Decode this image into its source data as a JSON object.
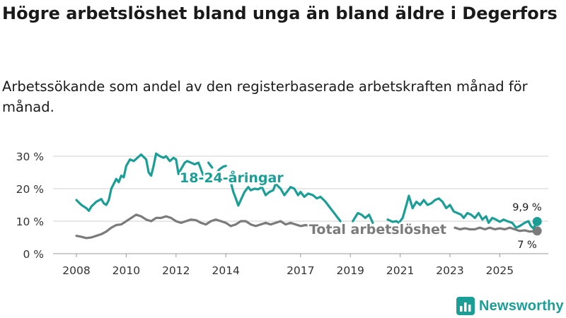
{
  "header": {
    "title": "Högre arbetslöshet bland unga än bland äldre i Degerfors",
    "subtitle": "Arbetssökande som andel av den registerbaserade arbetskraften månad för månad."
  },
  "brand": {
    "name": "Newsworthy"
  },
  "colors": {
    "youth": "#1a9e96",
    "total": "#7b7b7b",
    "grid": "#d0d0d0",
    "text": "#333333"
  },
  "chart_data": {
    "type": "line",
    "title": "Högre arbetslöshet bland unga än bland äldre i Degerfors",
    "subtitle": "Arbetssökande som andel av den registerbaserade arbetskraften månad för månad.",
    "xlabel": "",
    "ylabel": "",
    "x_range": [
      2007.6,
      2026.5
    ],
    "ylim": [
      0,
      32
    ],
    "y_ticks": [
      0,
      10,
      20,
      30
    ],
    "y_tick_labels": [
      "0 %",
      "10 %",
      "20 %",
      "30 %"
    ],
    "x_ticks": [
      2008,
      2010,
      2012,
      2014,
      2017,
      2019,
      2021,
      2023,
      2025
    ],
    "x_tick_labels": [
      "2008",
      "2010",
      "2012",
      "2014",
      "2017",
      "2019",
      "2021",
      "2023",
      "2025"
    ],
    "grid": "horizontal",
    "series": [
      {
        "name": "18-24-åringar",
        "label": "18-24-åringar",
        "end_label": "9,9 %",
        "end_value": 9.9,
        "color": "#1a9e96",
        "segments": [
          [
            [
              2008.0,
              16.5
            ],
            [
              2008.2,
              15
            ],
            [
              2008.4,
              14
            ],
            [
              2008.5,
              13.2
            ],
            [
              2008.6,
              14.5
            ],
            [
              2008.8,
              16
            ],
            [
              2009.0,
              16.8
            ],
            [
              2009.1,
              15.5
            ],
            [
              2009.2,
              15
            ],
            [
              2009.3,
              16.5
            ],
            [
              2009.4,
              20
            ],
            [
              2009.5,
              21.5
            ],
            [
              2009.6,
              23
            ],
            [
              2009.7,
              22
            ],
            [
              2009.8,
              24
            ],
            [
              2009.9,
              23.5
            ],
            [
              2010.0,
              27
            ],
            [
              2010.15,
              29
            ],
            [
              2010.3,
              28.5
            ],
            [
              2010.45,
              29.5
            ],
            [
              2010.6,
              30.5
            ],
            [
              2010.8,
              29
            ],
            [
              2010.9,
              25
            ],
            [
              2011.0,
              24
            ],
            [
              2011.1,
              27
            ],
            [
              2011.2,
              30.8
            ],
            [
              2011.35,
              30
            ],
            [
              2011.5,
              29.5
            ],
            [
              2011.6,
              30
            ],
            [
              2011.75,
              28.5
            ],
            [
              2011.9,
              29.5
            ],
            [
              2012.0,
              29
            ],
            [
              2012.1,
              24.5
            ],
            [
              2012.2,
              26
            ],
            [
              2012.35,
              28
            ],
            [
              2012.45,
              28.5
            ],
            [
              2012.6,
              28
            ],
            [
              2012.75,
              27.5
            ],
            [
              2012.9,
              28
            ],
            [
              2013.0,
              26
            ],
            [
              2013.1,
              24
            ]
          ],
          [
            [
              2013.3,
              28
            ],
            [
              2013.45,
              26.5
            ]
          ],
          [
            [
              2013.65,
              25
            ],
            [
              2013.75,
              26
            ],
            [
              2013.9,
              26.8
            ],
            [
              2014.0,
              27
            ]
          ],
          [
            [
              2014.2,
              22
            ],
            [
              2014.3,
              19
            ],
            [
              2014.4,
              17
            ],
            [
              2014.5,
              14.8
            ],
            [
              2014.6,
              16.5
            ],
            [
              2014.75,
              19
            ],
            [
              2014.9,
              20.5
            ],
            [
              2015.0,
              19.5
            ],
            [
              2015.15,
              20
            ],
            [
              2015.3,
              19.8
            ],
            [
              2015.45,
              20.5
            ],
            [
              2015.6,
              18
            ],
            [
              2015.75,
              19
            ],
            [
              2015.9,
              19.5
            ],
            [
              2016.0,
              21.5
            ],
            [
              2016.2,
              20
            ],
            [
              2016.35,
              18
            ],
            [
              2016.5,
              19.5
            ],
            [
              2016.6,
              20.5
            ],
            [
              2016.75,
              20
            ],
            [
              2016.9,
              18
            ],
            [
              2017.0,
              19
            ],
            [
              2017.15,
              17.5
            ],
            [
              2017.3,
              18.5
            ],
            [
              2017.5,
              18
            ],
            [
              2017.65,
              17
            ],
            [
              2017.8,
              17.5
            ],
            [
              2018.0,
              16
            ],
            [
              2018.2,
              14
            ],
            [
              2018.4,
              12
            ],
            [
              2018.6,
              10
            ]
          ],
          [
            [
              2019.1,
              10
            ],
            [
              2019.3,
              12.5
            ],
            [
              2019.45,
              12
            ],
            [
              2019.6,
              11
            ],
            [
              2019.75,
              12
            ],
            [
              2019.9,
              9.5
            ]
          ],
          [
            [
              2020.5,
              10.5
            ],
            [
              2020.7,
              9.8
            ],
            [
              2020.85,
              10
            ],
            [
              2020.95,
              9.5
            ],
            [
              2021.1,
              11
            ],
            [
              2021.25,
              15
            ],
            [
              2021.35,
              17.8
            ],
            [
              2021.5,
              14
            ],
            [
              2021.65,
              16
            ],
            [
              2021.8,
              15
            ],
            [
              2021.95,
              16.5
            ],
            [
              2022.1,
              15
            ],
            [
              2022.25,
              15.5
            ],
            [
              2022.4,
              16.5
            ],
            [
              2022.55,
              17
            ],
            [
              2022.7,
              16
            ],
            [
              2022.85,
              14
            ],
            [
              2023.0,
              15
            ],
            [
              2023.15,
              13
            ],
            [
              2023.3,
              12.5
            ],
            [
              2023.45,
              12
            ],
            [
              2023.55,
              11
            ],
            [
              2023.7,
              12.5
            ],
            [
              2023.85,
              12
            ],
            [
              2024.0,
              11
            ],
            [
              2024.15,
              12.5
            ],
            [
              2024.3,
              10.5
            ],
            [
              2024.45,
              11.5
            ],
            [
              2024.55,
              9.5
            ],
            [
              2024.7,
              11
            ],
            [
              2024.85,
              10.5
            ],
            [
              2025.0,
              9.8
            ],
            [
              2025.15,
              10.5
            ],
            [
              2025.3,
              10
            ],
            [
              2025.5,
              9.5
            ],
            [
              2025.65,
              8
            ],
            [
              2025.8,
              8.5
            ],
            [
              2025.9,
              9
            ],
            [
              2026.0,
              9.5
            ],
            [
              2026.15,
              10
            ],
            [
              2026.25,
              8.5
            ],
            [
              2026.35,
              7.8
            ],
            [
              2026.5,
              9.9
            ]
          ]
        ]
      },
      {
        "name": "Total arbetslöshet",
        "label": "Total arbetslöshet",
        "end_label": "7 %",
        "end_value": 7.0,
        "color": "#7b7b7b",
        "segments": [
          [
            [
              2008.0,
              5.5
            ],
            [
              2008.2,
              5.2
            ],
            [
              2008.4,
              4.8
            ],
            [
              2008.6,
              5.0
            ],
            [
              2008.8,
              5.5
            ],
            [
              2009.0,
              6.0
            ],
            [
              2009.2,
              6.8
            ],
            [
              2009.4,
              8.0
            ],
            [
              2009.6,
              8.8
            ],
            [
              2009.8,
              9.0
            ],
            [
              2010.0,
              10.0
            ],
            [
              2010.2,
              11.0
            ],
            [
              2010.4,
              12.0
            ],
            [
              2010.6,
              11.5
            ],
            [
              2010.8,
              10.5
            ],
            [
              2011.0,
              10.0
            ],
            [
              2011.2,
              11.0
            ],
            [
              2011.4,
              11.0
            ],
            [
              2011.6,
              11.5
            ],
            [
              2011.8,
              11.0
            ],
            [
              2012.0,
              10.0
            ],
            [
              2012.2,
              9.5
            ],
            [
              2012.4,
              10.0
            ],
            [
              2012.6,
              10.5
            ],
            [
              2012.8,
              10.3
            ],
            [
              2013.0,
              9.5
            ],
            [
              2013.2,
              9.0
            ],
            [
              2013.4,
              10.0
            ],
            [
              2013.6,
              10.5
            ],
            [
              2013.8,
              10.0
            ],
            [
              2014.0,
              9.5
            ],
            [
              2014.2,
              8.5
            ],
            [
              2014.4,
              9.0
            ],
            [
              2014.6,
              10.0
            ],
            [
              2014.8,
              10.0
            ],
            [
              2015.0,
              9.0
            ],
            [
              2015.2,
              8.5
            ],
            [
              2015.4,
              9.0
            ],
            [
              2015.6,
              9.5
            ],
            [
              2015.8,
              9.0
            ],
            [
              2016.0,
              9.5
            ],
            [
              2016.2,
              10.0
            ],
            [
              2016.4,
              9.0
            ],
            [
              2016.6,
              9.5
            ],
            [
              2016.8,
              9.0
            ],
            [
              2017.0,
              8.5
            ],
            [
              2017.2,
              8.8
            ],
            [
              2017.4,
              8.5
            ],
            [
              2017.6,
              8.0
            ],
            [
              2017.8,
              8.2
            ]
          ],
          [
            [
              2023.2,
              8.0
            ],
            [
              2023.4,
              7.5
            ],
            [
              2023.6,
              7.8
            ],
            [
              2023.8,
              7.5
            ],
            [
              2024.0,
              7.5
            ],
            [
              2024.2,
              8.0
            ],
            [
              2024.4,
              7.5
            ],
            [
              2024.6,
              8.0
            ],
            [
              2024.8,
              7.5
            ],
            [
              2025.0,
              7.8
            ],
            [
              2025.2,
              7.5
            ],
            [
              2025.4,
              8.0
            ],
            [
              2025.6,
              7.5
            ],
            [
              2025.8,
              7.0
            ],
            [
              2026.0,
              7.2
            ],
            [
              2026.2,
              6.8
            ],
            [
              2026.5,
              7.0
            ]
          ]
        ]
      }
    ]
  }
}
